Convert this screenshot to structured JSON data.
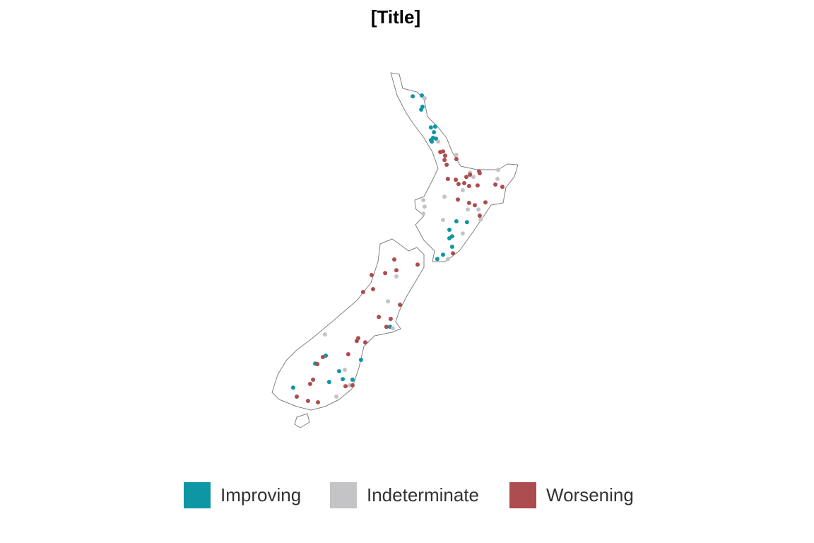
{
  "chart_data": {
    "type": "scatter",
    "title": "[Title]",
    "series": [
      {
        "name": "Improving",
        "color": "#0e96a4",
        "x": [
          173.67,
          174.1,
          174.13,
          174.07,
          174.53,
          174.73,
          174.67,
          174.63,
          174.57,
          174.77,
          174.53,
          175.73,
          176.23,
          175.4,
          175.53,
          175.4,
          175.53,
          175.1,
          174.83,
          172.6,
          169.57,
          169.07,
          171.23,
          170.2,
          170.37,
          169.73,
          170.83,
          168.03
        ],
        "values": [
          -35.23,
          -35.2,
          -35.6,
          -35.7,
          -36.33,
          -36.3,
          -36.5,
          -36.7,
          -36.83,
          -36.73,
          -36.78,
          -39.65,
          -39.68,
          -39.95,
          -40.18,
          -40.25,
          -40.55,
          -40.83,
          -40.98,
          -43.38,
          -44.4,
          -44.68,
          -44.55,
          -44.95,
          -45.23,
          -45.33,
          -45.25,
          -45.53
        ]
      },
      {
        "name": "Indeterminate",
        "color": "#c4c4c6",
        "x": [
          174.23,
          174.87,
          175.73,
          176.37,
          176.53,
          177.7,
          177.67,
          176.03,
          175.17,
          174.17,
          174.23,
          174.17,
          176.27,
          176.77,
          176.87,
          175.1,
          176.03,
          175.33,
          172.9,
          172.5,
          172.73,
          169.53,
          170.47,
          170.7,
          170.07
        ],
        "values": [
          -35.3,
          -36.83,
          -37.3,
          -37.93,
          -38.08,
          -37.83,
          -38.15,
          -38.55,
          -38.78,
          -38.9,
          -39.13,
          -39.38,
          -39.23,
          -39.23,
          -39.58,
          -39.6,
          -40.08,
          -40.98,
          -41.6,
          -42.48,
          -43.43,
          -43.65,
          -44.9,
          -45.45,
          -45.85
        ]
      },
      {
        "name": "Worsening",
        "color": "#ad4c4e",
        "x": [
          174.97,
          175.1,
          175.2,
          175.17,
          175.27,
          175.73,
          175.33,
          175.7,
          175.83,
          176.1,
          176.2,
          176.37,
          176.33,
          176.8,
          176.83,
          176.73,
          177.57,
          177.9,
          175.8,
          176.6,
          177.1,
          176.33,
          176.83,
          175.57,
          172.8,
          173.9,
          172.37,
          172.9,
          171.73,
          171.8,
          171.33,
          173.07,
          172.07,
          172.63,
          172.43,
          171.1,
          171.03,
          171.43,
          170.63,
          169.43,
          169.17,
          168.97,
          168.83,
          170.5,
          170.83,
          168.2,
          168.73,
          169.2
        ],
        "values": [
          -37.2,
          -37.18,
          -37.33,
          -37.48,
          -37.65,
          -37.45,
          -38.15,
          -38.18,
          -38.33,
          -38.3,
          -38.08,
          -38.0,
          -38.4,
          -37.88,
          -37.95,
          -38.38,
          -38.35,
          -38.43,
          -38.88,
          -39.08,
          -38.98,
          -39.0,
          -39.45,
          -40.78,
          -41.0,
          -41.18,
          -41.48,
          -41.38,
          -41.55,
          -42.05,
          -42.15,
          -42.6,
          -43.03,
          -43.1,
          -43.38,
          -43.78,
          -43.88,
          -43.93,
          -44.35,
          -44.45,
          -44.7,
          -45.25,
          -45.4,
          -45.48,
          -45.45,
          -45.85,
          -46.0,
          -46.05
        ]
      }
    ]
  }
}
